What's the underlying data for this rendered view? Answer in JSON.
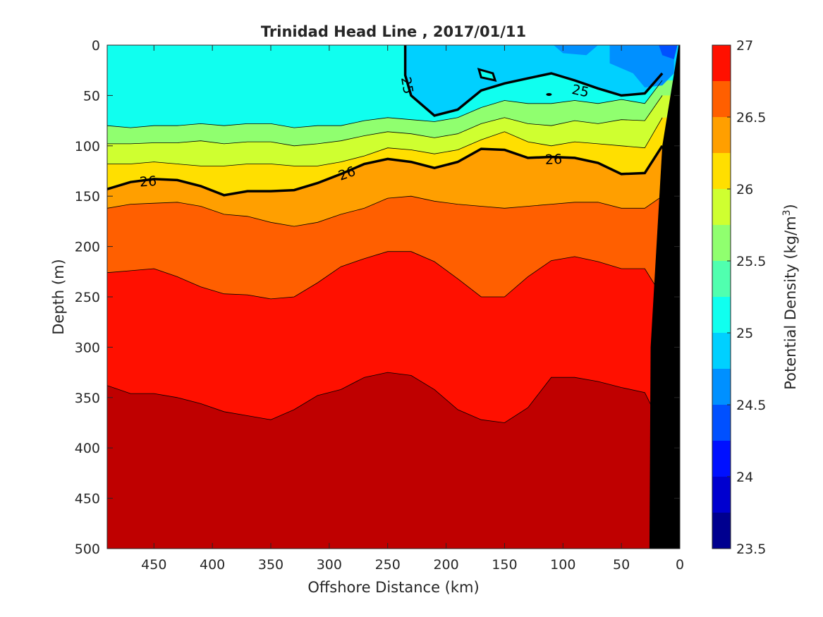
{
  "chart_data": {
    "type": "heatmap",
    "subtype": "filled-contour",
    "title": "Trinidad Head Line , 2017/01/11",
    "xlabel": "Offshore Distance (km)",
    "ylabel": "Depth (m)",
    "xlim": [
      490,
      0
    ],
    "ylim": [
      0,
      500
    ],
    "x_reversed": true,
    "y_reversed": true,
    "xticks": [
      "450",
      "400",
      "350",
      "300",
      "250",
      "200",
      "150",
      "100",
      "50",
      "0"
    ],
    "yticks": [
      "0",
      "50",
      "100",
      "150",
      "200",
      "250",
      "300",
      "350",
      "400",
      "450",
      "500"
    ],
    "colorbar": {
      "label": "Potential Density (kg/m",
      "label_sup": "3",
      "label_end": ")",
      "range": [
        23.5,
        27
      ],
      "step": 0.25,
      "ticks": [
        "23.5",
        "24",
        "24.5",
        "25",
        "25.5",
        "26",
        "26.5",
        "27"
      ],
      "colors": [
        "#00008f",
        "#0000cf",
        "#0010ff",
        "#0050ff",
        "#0090ff",
        "#00d0ff",
        "#10ffef",
        "#50ffaf",
        "#90ff6f",
        "#cfff30",
        "#ffdf00",
        "#ff9f00",
        "#ff5f00",
        "#ff1000",
        "#bf0000"
      ]
    },
    "labeled_contours": [
      {
        "level": 25,
        "label": "25"
      },
      {
        "level": 26,
        "label": "26"
      }
    ],
    "isopycnal_depths": {
      "x_km": [
        490,
        470,
        450,
        430,
        410,
        390,
        370,
        350,
        330,
        310,
        290,
        270,
        250,
        230,
        210,
        190,
        170,
        150,
        130,
        110,
        90,
        70,
        50,
        30,
        15
      ],
      "d25": [
        null,
        null,
        null,
        null,
        null,
        null,
        null,
        null,
        null,
        null,
        null,
        null,
        null,
        50,
        70,
        64,
        45,
        38,
        33,
        28,
        35,
        43,
        50,
        48,
        28
      ],
      "d25_25": [
        80,
        82,
        80,
        80,
        78,
        80,
        78,
        78,
        82,
        80,
        80,
        75,
        72,
        74,
        76,
        72,
        62,
        55,
        58,
        58,
        55,
        58,
        54,
        58,
        35
      ],
      "d25_5": [
        98,
        98,
        97,
        97,
        95,
        98,
        96,
        96,
        100,
        98,
        95,
        90,
        86,
        88,
        92,
        88,
        78,
        72,
        78,
        80,
        75,
        78,
        74,
        75,
        50
      ],
      "d25_75": [
        118,
        118,
        116,
        118,
        120,
        120,
        118,
        118,
        120,
        120,
        116,
        110,
        102,
        104,
        108,
        104,
        94,
        86,
        96,
        100,
        96,
        98,
        100,
        102,
        72
      ],
      "d26": [
        143,
        136,
        133,
        134,
        140,
        149,
        145,
        145,
        144,
        137,
        128,
        118,
        113,
        116,
        122,
        116,
        103,
        104,
        112,
        111,
        112,
        117,
        128,
        127,
        100
      ],
      "d26_25": [
        162,
        158,
        157,
        156,
        160,
        168,
        170,
        176,
        180,
        176,
        168,
        162,
        152,
        150,
        155,
        158,
        160,
        162,
        160,
        158,
        156,
        156,
        162,
        162,
        150
      ],
      "d26_5": [
        226,
        224,
        222,
        230,
        240,
        247,
        248,
        252,
        250,
        236,
        220,
        212,
        205,
        205,
        215,
        232,
        250,
        250,
        230,
        214,
        210,
        215,
        222,
        222,
        250
      ],
      "d26_75": [
        338,
        346,
        346,
        350,
        356,
        364,
        368,
        372,
        362,
        348,
        342,
        330,
        325,
        328,
        342,
        362,
        372,
        375,
        360,
        330,
        330,
        334,
        340,
        345,
        380
      ]
    }
  }
}
